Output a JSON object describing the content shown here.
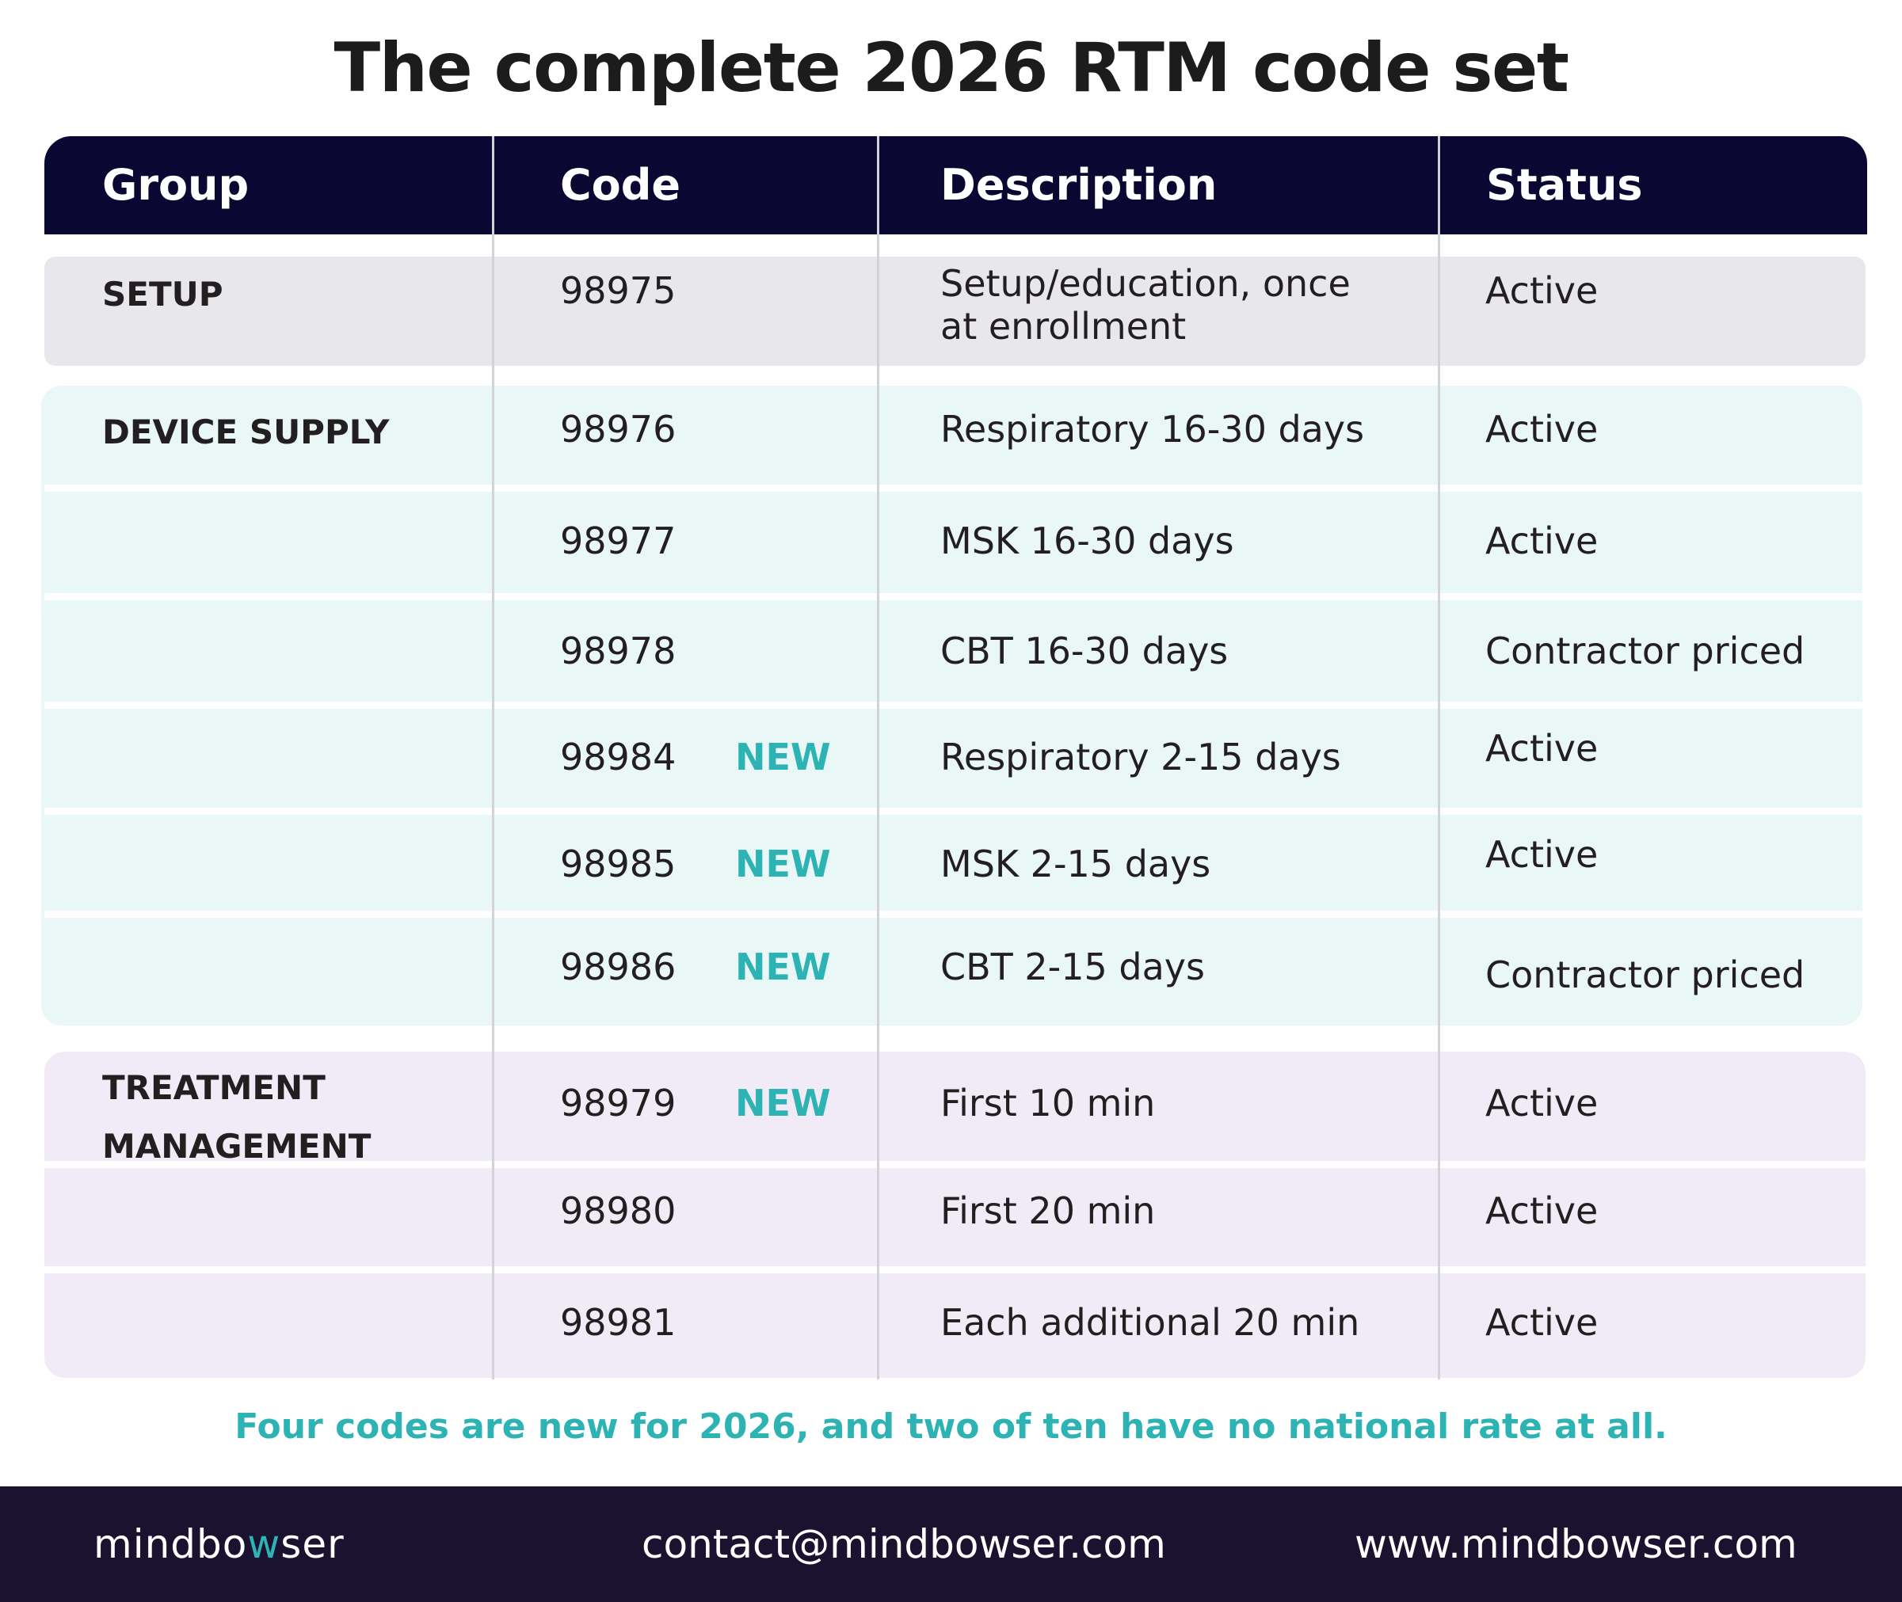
{
  "title": "The complete 2026 RTM code set",
  "table": {
    "headers": {
      "group": "Group",
      "code": "Code",
      "description": "Description",
      "status": "Status"
    },
    "new_label": "NEW",
    "groups": [
      {
        "name": "SETUP",
        "name_lines": [
          "SETUP"
        ],
        "color": "#e8e7ec"
      },
      {
        "name": "DEVICE SUPPLY",
        "name_lines": [
          "DEVICE SUPPLY"
        ],
        "color": "#eaf7f7"
      },
      {
        "name": "TREATMENT MANAGEMENT",
        "name_lines": [
          "TREATMENT",
          "MANAGEMENT"
        ],
        "color": "#f1ebf8"
      }
    ],
    "rows": [
      {
        "code": "98975",
        "new": false,
        "description": [
          "Setup/education, once",
          "at enrollment"
        ],
        "status": "Active"
      },
      {
        "code": "98976",
        "new": false,
        "description": [
          "Respiratory 16-30 days"
        ],
        "status": "Active"
      },
      {
        "code": "98977",
        "new": false,
        "description": [
          "MSK 16-30 days"
        ],
        "status": "Active"
      },
      {
        "code": "98978",
        "new": false,
        "description": [
          "CBT 16-30 days"
        ],
        "status": "Contractor priced"
      },
      {
        "code": "98984",
        "new": true,
        "description": [
          "Respiratory 2-15 days"
        ],
        "status": "Active"
      },
      {
        "code": "98985",
        "new": true,
        "description": [
          "MSK 2-15 days"
        ],
        "status": "Active"
      },
      {
        "code": "98986",
        "new": true,
        "description": [
          "CBT 2-15 days"
        ],
        "status": "Contractor priced"
      },
      {
        "code": "98979",
        "new": true,
        "description": [
          "First 10 min"
        ],
        "status": "Active"
      },
      {
        "code": "98980",
        "new": false,
        "description": [
          "First 20 min"
        ],
        "status": "Active"
      },
      {
        "code": "98981",
        "new": false,
        "description": [
          "Each additional 20 min"
        ],
        "status": "Active"
      }
    ]
  },
  "tagline": "Four codes are new for 2026, and two of ten have no national rate at all.",
  "footer": {
    "logo_parts": [
      "mindbo",
      "w",
      "ser"
    ],
    "email": "contact@mindbowser.com",
    "website": "www.mindbowser.com"
  },
  "colors": {
    "header": "#0a0833",
    "accent": "#2db3b3",
    "footer": "#1b1230",
    "divider": "#d2d3d6"
  }
}
